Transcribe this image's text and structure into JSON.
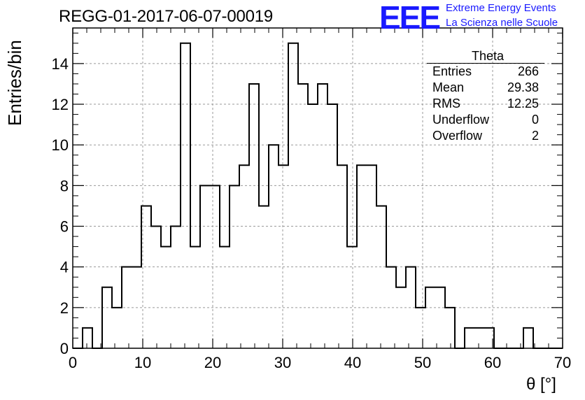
{
  "title": "REGG-01-2017-06-07-00019",
  "logo": {
    "mark": "EEE",
    "line1": "Extreme Energy Events",
    "line2": "La Scienza nelle Scuole",
    "color": "#1a1aff"
  },
  "stats": {
    "name": "Theta",
    "rows": [
      {
        "label": "Entries",
        "value": "266"
      },
      {
        "label": "Mean",
        "value": "29.38"
      },
      {
        "label": "RMS",
        "value": "12.25"
      },
      {
        "label": "Underflow",
        "value": "0"
      },
      {
        "label": "Overflow",
        "value": "2"
      }
    ]
  },
  "chart_data": {
    "type": "bar",
    "style": "step-histogram",
    "xlabel": "θ [°]",
    "ylabel": "Entries/bin",
    "xlim": [
      0,
      70
    ],
    "ylim": [
      0,
      15.75
    ],
    "grid": true,
    "bin_width": 1.4,
    "x_ticks": [
      0,
      10,
      20,
      30,
      40,
      50,
      60,
      70
    ],
    "y_ticks": [
      0,
      2,
      4,
      6,
      8,
      10,
      12,
      14
    ],
    "values": [
      0,
      1,
      0,
      3,
      2,
      4,
      4,
      7,
      6,
      5,
      6,
      15,
      5,
      8,
      8,
      5,
      8,
      9,
      13,
      7,
      10,
      9,
      15,
      13,
      12,
      13,
      12,
      9,
      5,
      9,
      9,
      7,
      4,
      3,
      4,
      2,
      3,
      3,
      2,
      0,
      1,
      1,
      1,
      0,
      0,
      0,
      1,
      0,
      0,
      0
    ]
  }
}
